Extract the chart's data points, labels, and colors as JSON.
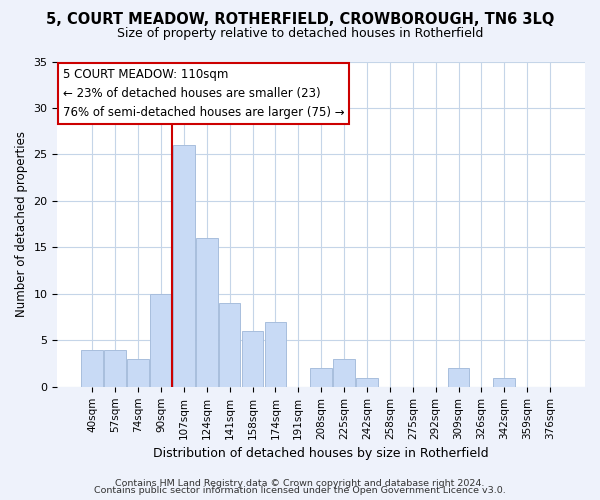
{
  "title": "5, COURT MEADOW, ROTHERFIELD, CROWBOROUGH, TN6 3LQ",
  "subtitle": "Size of property relative to detached houses in Rotherfield",
  "xlabel": "Distribution of detached houses by size in Rotherfield",
  "ylabel": "Number of detached properties",
  "bar_labels": [
    "40sqm",
    "57sqm",
    "74sqm",
    "90sqm",
    "107sqm",
    "124sqm",
    "141sqm",
    "158sqm",
    "174sqm",
    "191sqm",
    "208sqm",
    "225sqm",
    "242sqm",
    "258sqm",
    "275sqm",
    "292sqm",
    "309sqm",
    "326sqm",
    "342sqm",
    "359sqm",
    "376sqm"
  ],
  "bar_values": [
    4,
    4,
    3,
    10,
    26,
    16,
    9,
    6,
    7,
    0,
    2,
    3,
    1,
    0,
    0,
    0,
    2,
    0,
    1,
    0,
    0
  ],
  "bar_color": "#c8daf5",
  "bar_edge_color": "#a8bedd",
  "vline_index": 4,
  "vline_color": "#cc0000",
  "annotation_line1": "5 COURT MEADOW: 110sqm",
  "annotation_line2": "← 23% of detached houses are smaller (23)",
  "annotation_line3": "76% of semi-detached houses are larger (75) →",
  "annotation_box_color": "#ffffff",
  "annotation_box_edge": "#cc0000",
  "ylim": [
    0,
    35
  ],
  "yticks": [
    0,
    5,
    10,
    15,
    20,
    25,
    30,
    35
  ],
  "footer1": "Contains HM Land Registry data © Crown copyright and database right 2024.",
  "footer2": "Contains public sector information licensed under the Open Government Licence v3.0.",
  "bg_color": "#eef2fb",
  "plot_bg_color": "#ffffff",
  "grid_color": "#c5d5e8"
}
